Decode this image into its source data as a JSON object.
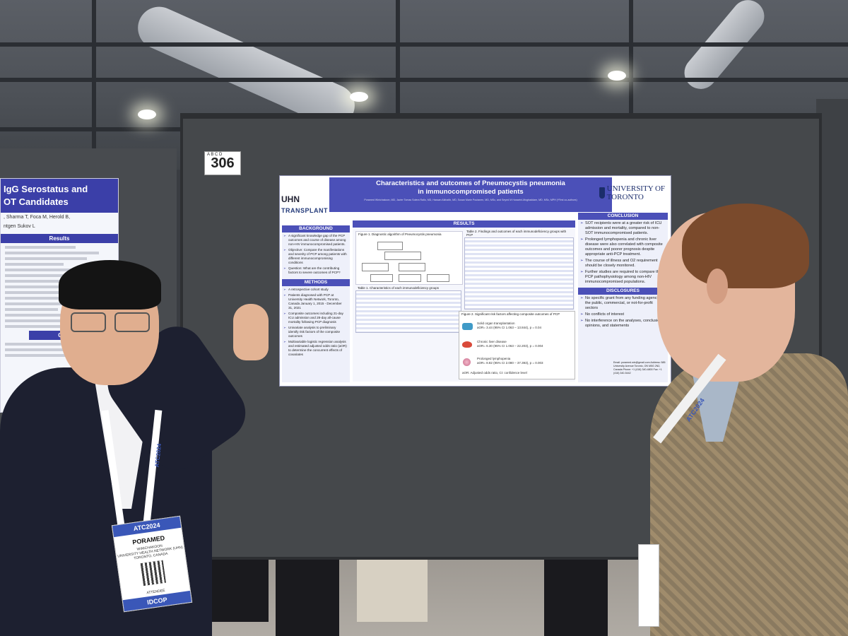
{
  "booth": {
    "number": "306",
    "small_text": "A B C D"
  },
  "left_poster": {
    "title_line1": "IgG Serostatus and",
    "title_line2": "OT Candidates",
    "authors": ", Sharma T, Foca M, Herold B,",
    "authors2": "ntgen Sukov L",
    "section_results": "Results",
    "section_conclusion": "Conclusion"
  },
  "poster": {
    "title_line1": "Characteristics and outcomes of Pneumocystis pneumonia",
    "title_line2": "in immunocompromised patients",
    "authors": "Poramed Winichakoon, MD, Javier Tomas Solera Rallo, MD, Hassan Alkhatib, MD, Susan Marie Poutanen, MD, MSc, and Seyed M Hosseini-Moghaddam, MD, MSc, MPH (*First co-authors)",
    "uhn_logo": "UHN",
    "transplant_logo": "TRANSPLANT",
    "uoft_logo": "UNIVERSITY OF TORONTO",
    "background_heading": "BACKGROUND",
    "background_items": [
      "A significant knowledge gap of the PCP outcomes and course of disease among non-HIV immunocompromised patients.",
      "Objective: Compare the manifestations and severity of PCP among patients with different immunocompromising conditions",
      "Question: What are the contributing factors to severe outcomes of PCP?"
    ],
    "methods_heading": "METHODS",
    "methods_items": [
      "A retrospective cohort study",
      "Patients diagnosed with PCP at University Health Network, Toronto, Canada January 1, 2015 - December 31, 2021",
      "Composite outcomes including 21-day ICU admission and 28-day all-cause mortality following PCP diagnosis",
      "Univariate analysis to preliminary identify risk factors of the composite outcomes",
      "Multivariable logistic regression analysis and estimated adjusted odds ratio (aOR) to determine the concurrent effects of covariates"
    ],
    "results_heading": "RESULTS",
    "figure1_caption": "Figure 1. Diagnostic algorithm of Pneumocystis pneumonia",
    "table1_caption": "Table 1. Characteristics of each immunodeficiency groups",
    "table2_caption": "Table 2. Findings and outcomes of each immunodeficiency groups with PCP",
    "figure2_caption": "Figure 2. Significant risk factors affecting composite outcomes of PCP",
    "risk_factors": [
      {
        "name": "Solid organ transplantation",
        "stat": "aOR= 3.44 (95% CI 1.063 – 13.844), p = 0.04"
      },
      {
        "name": "Chronic liver disease",
        "stat": "aOR= 6.30 (95% CI 1.063 – 22.203), p = 0.004"
      },
      {
        "name": "Prolonged lymphopenia",
        "stat": "aOR= 8.82 (95% CI 2.080 – 37.393), p = 0.003"
      }
    ],
    "aor_note": "aOR: Adjusted odds ratio, CI: confidence level",
    "conclusion_heading": "CONCLUSION",
    "conclusion_items": [
      "SOT recipients were at a greater risk of ICU admission and mortality, compared to non-SOT immunocompromised patients.",
      "Prolonged lymphopenia and chronic liver disease were also correlated with composite outcomes and poorer prognosis despite appropriate anti-PCP treatment.",
      "The course of illness and O2 requirement should be closely monitored.",
      "Further studies are required to compare the PCP pathophysiology among non-HIV immunocompromised populations."
    ],
    "disclosures_heading": "DISCLOSURES",
    "disclosures_items": [
      "No specific grant from any funding agency in the public, commercial, or not-for-profit sectors",
      "No conflicts of interest",
      "No interference on the analyses, conclusions, opinions, and statements"
    ],
    "contact": "Email: poramed.win@gmail.com Address: 585 University Avenue Toronto, ON M5G 2N2, Canada Phone: +1 (416) 340-4800 Fax: +1 (416) 340-5442"
  },
  "badge_left": {
    "event": "ATC2024",
    "name": "PORAMED",
    "org_line1": "WINICHAKOON",
    "org_line2": "UNIVERSITY HEALTH NETWORK (UHN)",
    "org_line3": "TORONTO, CANADA",
    "role": "ATTENDEE",
    "footer": "IDCOP"
  },
  "lanyard_left_text": "ATC2024",
  "lanyard_right_text": "ATC2024",
  "colors": {
    "poster_header": "#4b50b8",
    "panel": "#45484b",
    "badge_blue": "#3a57b8"
  }
}
